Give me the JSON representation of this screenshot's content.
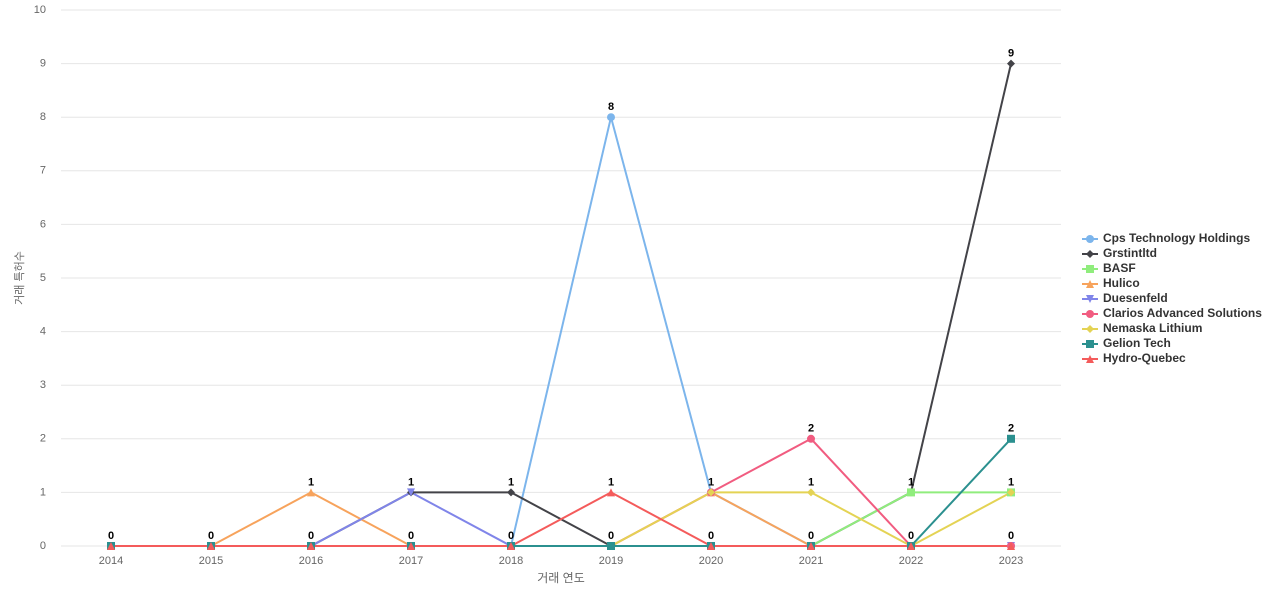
{
  "chart_data": {
    "type": "line",
    "x_label": "거래 연도",
    "y_label": "거래 특허수",
    "categories": [
      "2014",
      "2015",
      "2016",
      "2017",
      "2018",
      "2019",
      "2020",
      "2021",
      "2022",
      "2023"
    ],
    "ylim": [
      0,
      10
    ],
    "yticks": [
      0,
      1,
      2,
      3,
      4,
      5,
      6,
      7,
      8,
      9,
      10
    ],
    "grid": true,
    "legend": "right",
    "series": [
      {
        "name": "Cps Technology Holdings",
        "color": "#7cb5ec",
        "marker": "circle",
        "values": [
          0,
          0,
          0,
          0,
          0,
          8,
          1,
          0,
          0,
          0
        ]
      },
      {
        "name": "Grstintltd",
        "color": "#434348",
        "marker": "diamond",
        "values": [
          0,
          0,
          0,
          1,
          1,
          0,
          0,
          0,
          1,
          9
        ]
      },
      {
        "name": "BASF",
        "color": "#90ed7d",
        "marker": "square",
        "values": [
          0,
          0,
          0,
          0,
          0,
          0,
          0,
          0,
          1,
          1
        ]
      },
      {
        "name": "Hulico",
        "color": "#f7a35c",
        "marker": "triangle",
        "values": [
          0,
          0,
          1,
          0,
          0,
          0,
          1,
          0,
          0,
          0
        ]
      },
      {
        "name": "Duesenfeld",
        "color": "#8085e9",
        "marker": "triangle-down",
        "values": [
          0,
          0,
          0,
          1,
          0,
          0,
          0,
          0,
          0,
          0
        ]
      },
      {
        "name": "Clarios Advanced Solutions",
        "color": "#f15c80",
        "marker": "circle",
        "values": [
          0,
          0,
          0,
          0,
          0,
          0,
          1,
          2,
          0,
          0
        ]
      },
      {
        "name": "Nemaska Lithium",
        "color": "#e4d354",
        "marker": "diamond",
        "values": [
          0,
          0,
          0,
          0,
          0,
          0,
          1,
          1,
          0,
          1
        ]
      },
      {
        "name": "Gelion Tech",
        "color": "#2b908f",
        "marker": "square",
        "values": [
          0,
          0,
          0,
          0,
          0,
          0,
          0,
          0,
          0,
          2
        ]
      },
      {
        "name": "Hydro-Quebec",
        "color": "#f45b5b",
        "marker": "triangle",
        "values": [
          0,
          0,
          0,
          0,
          0,
          1,
          0,
          0,
          0,
          0
        ]
      }
    ]
  }
}
